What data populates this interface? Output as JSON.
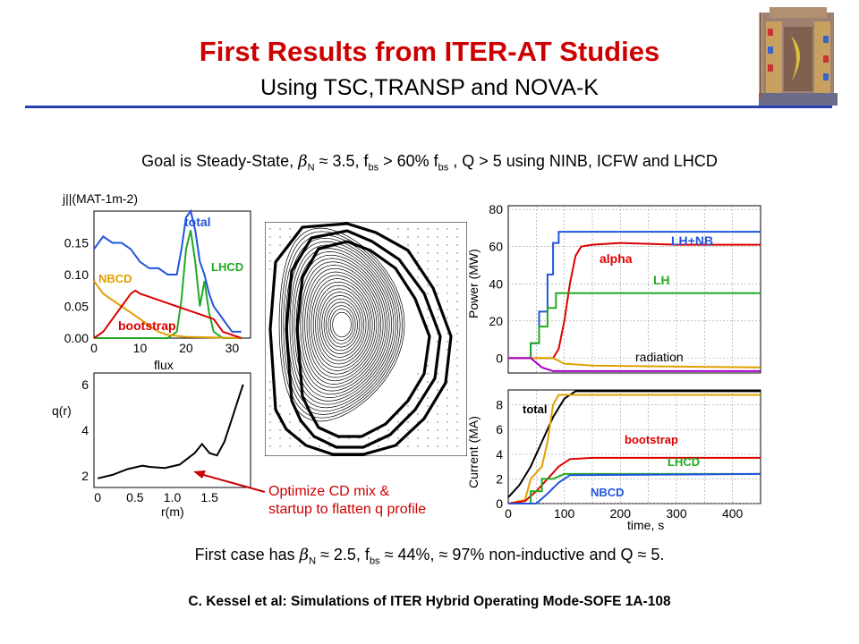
{
  "slide": {
    "title": "First Results from ITER-AT Studies",
    "subtitle": "Using TSC,TRANSP and NOVA-K",
    "goal": {
      "prefix": "Goal is Steady-State, ",
      "beta": "β",
      "beta_sub": "N",
      "mid1": " ≈ 3.5, f",
      "fbs_sub": "bs",
      "mid2": " > 60% f",
      "fbs_sub2": "bs",
      "suffix": " , Q > 5 using NINB, ICFW and LHCD"
    },
    "result": {
      "prefix": "First case has ",
      "beta": "β",
      "beta_sub": "N",
      "mid1": " ≈ 2.5, f",
      "fbs_sub": "bs",
      "suffix": " ≈ 44%, ≈ 97% non-inductive and  Q ≈ 5."
    },
    "note_line1": "Optimize CD mix &",
    "note_line2": "startup to flatten q profile",
    "footer": "C. Kessel et al:  Simulations of ITER Hybrid Operating Mode-SOFE 1A-108"
  },
  "colors": {
    "title": "#cc0000",
    "rule": "#2a3fb0",
    "total": "#2255dd",
    "lhcd": "#22aa22",
    "nbcd": "#e0a000",
    "bootstrap": "#dd0000",
    "radiation": "#aa00cc"
  },
  "chart_data": [
    {
      "type": "line",
      "ylabel": "j||(MAT-1m-2)",
      "xlabel": "flux",
      "xticks": [
        "0",
        "10",
        "20",
        "30"
      ],
      "yticks": [
        "0.00",
        "0.05",
        "0.10",
        "0.15"
      ],
      "xlim": [
        0,
        34
      ],
      "ylim": [
        0,
        0.2
      ],
      "series": [
        {
          "name": "total",
          "color": "#2255dd",
          "points": [
            [
              0,
              0.14
            ],
            [
              2,
              0.16
            ],
            [
              4,
              0.15
            ],
            [
              6,
              0.15
            ],
            [
              8,
              0.14
            ],
            [
              10,
              0.12
            ],
            [
              12,
              0.11
            ],
            [
              14,
              0.11
            ],
            [
              16,
              0.1
            ],
            [
              18,
              0.1
            ],
            [
              19,
              0.14
            ],
            [
              20,
              0.19
            ],
            [
              21,
              0.2
            ],
            [
              22,
              0.17
            ],
            [
              23,
              0.12
            ],
            [
              24,
              0.1
            ],
            [
              25,
              0.07
            ],
            [
              26,
              0.05
            ],
            [
              27,
              0.04
            ],
            [
              28,
              0.03
            ],
            [
              30,
              0.01
            ],
            [
              32,
              0.01
            ]
          ]
        },
        {
          "name": "LHCD",
          "color": "#22aa22",
          "points": [
            [
              0,
              0
            ],
            [
              16,
              0
            ],
            [
              18,
              0.01
            ],
            [
              19,
              0.06
            ],
            [
              20,
              0.14
            ],
            [
              21,
              0.17
            ],
            [
              22,
              0.12
            ],
            [
              23,
              0.05
            ],
            [
              24,
              0.09
            ],
            [
              25,
              0.04
            ],
            [
              26,
              0.01
            ],
            [
              28,
              0.0
            ],
            [
              32,
              0
            ]
          ]
        },
        {
          "name": "NBCD",
          "color": "#e0a000",
          "points": [
            [
              0,
              0.09
            ],
            [
              2,
              0.07
            ],
            [
              4,
              0.06
            ],
            [
              6,
              0.05
            ],
            [
              8,
              0.04
            ],
            [
              10,
              0.03
            ],
            [
              12,
              0.02
            ],
            [
              14,
              0.01
            ],
            [
              16,
              0.005
            ],
            [
              20,
              0.002
            ],
            [
              32,
              0
            ]
          ]
        },
        {
          "name": "bootstrap",
          "color": "#dd0000",
          "points": [
            [
              0,
              0.0
            ],
            [
              2,
              0.01
            ],
            [
              4,
              0.03
            ],
            [
              6,
              0.05
            ],
            [
              8,
              0.07
            ],
            [
              9,
              0.075
            ],
            [
              10,
              0.07
            ],
            [
              12,
              0.065
            ],
            [
              14,
              0.06
            ],
            [
              16,
              0.055
            ],
            [
              18,
              0.05
            ],
            [
              20,
              0.045
            ],
            [
              22,
              0.04
            ],
            [
              24,
              0.035
            ],
            [
              26,
              0.03
            ],
            [
              28,
              0.01
            ],
            [
              30,
              0.005
            ],
            [
              32,
              0
            ]
          ]
        }
      ],
      "labels": [
        "total",
        "LHCD",
        "NBCD",
        "bootstrap"
      ]
    },
    {
      "type": "line",
      "ylabel": "q(r)",
      "xlabel": "r(m)",
      "xticks": [
        "0",
        "0.5",
        "1.0",
        "1.5"
      ],
      "yticks": [
        "2",
        "4",
        "6"
      ],
      "xlim": [
        -0.05,
        2.05
      ],
      "ylim": [
        1.5,
        6.5
      ],
      "series": [
        {
          "name": "q",
          "color": "#000000",
          "points": [
            [
              0,
              1.9
            ],
            [
              0.2,
              2.05
            ],
            [
              0.4,
              2.3
            ],
            [
              0.6,
              2.45
            ],
            [
              0.7,
              2.4
            ],
            [
              0.9,
              2.35
            ],
            [
              1.1,
              2.5
            ],
            [
              1.3,
              3.0
            ],
            [
              1.4,
              3.4
            ],
            [
              1.5,
              3.0
            ],
            [
              1.6,
              2.9
            ],
            [
              1.7,
              3.5
            ],
            [
              1.8,
              4.5
            ],
            [
              1.9,
              5.5
            ],
            [
              1.95,
              6.0
            ]
          ]
        }
      ]
    },
    {
      "type": "line",
      "ylabel": "Power (MW)",
      "yticks": [
        "0",
        "20",
        "40",
        "60",
        "80"
      ],
      "xlim": [
        0,
        450
      ],
      "ylim": [
        -8,
        82
      ],
      "series": [
        {
          "name": "LH+NB",
          "color": "#2255dd",
          "points": [
            [
              0,
              0
            ],
            [
              40,
              0
            ],
            [
              40,
              8
            ],
            [
              55,
              8
            ],
            [
              55,
              25
            ],
            [
              70,
              25
            ],
            [
              70,
              45
            ],
            [
              80,
              45
            ],
            [
              80,
              62
            ],
            [
              90,
              62
            ],
            [
              90,
              68
            ],
            [
              450,
              68
            ]
          ]
        },
        {
          "name": "alpha",
          "color": "#dd0000",
          "points": [
            [
              0,
              0
            ],
            [
              80,
              0
            ],
            [
              90,
              5
            ],
            [
              100,
              20
            ],
            [
              110,
              40
            ],
            [
              120,
              55
            ],
            [
              130,
              60
            ],
            [
              150,
              61
            ],
            [
              200,
              62
            ],
            [
              300,
              61
            ],
            [
              450,
              61
            ]
          ]
        },
        {
          "name": "LH",
          "color": "#22aa22",
          "points": [
            [
              0,
              0
            ],
            [
              40,
              0
            ],
            [
              40,
              8
            ],
            [
              55,
              8
            ],
            [
              55,
              17
            ],
            [
              70,
              17
            ],
            [
              70,
              27
            ],
            [
              85,
              27
            ],
            [
              85,
              35
            ],
            [
              450,
              35
            ]
          ]
        },
        {
          "name": "radiation",
          "color": "#e0a000",
          "points": [
            [
              0,
              0
            ],
            [
              80,
              0
            ],
            [
              100,
              -3
            ],
            [
              150,
              -4
            ],
            [
              450,
              -5
            ]
          ]
        },
        {
          "name": "",
          "color": "#aa00cc",
          "points": [
            [
              0,
              0
            ],
            [
              40,
              0
            ],
            [
              60,
              -5
            ],
            [
              80,
              -7
            ],
            [
              450,
              -7
            ]
          ]
        }
      ],
      "labels": [
        "LH+NB",
        "alpha",
        "LH",
        "radiation"
      ]
    },
    {
      "type": "line",
      "xlabel": "time, s",
      "ylabel": "Current (MA)",
      "xticks": [
        "0",
        "100",
        "200",
        "300",
        "400"
      ],
      "yticks": [
        "0",
        "2",
        "4",
        "6",
        "8"
      ],
      "xlim": [
        0,
        450
      ],
      "ylim": [
        0,
        9.2
      ],
      "series": [
        {
          "name": "total",
          "color": "#000000",
          "points": [
            [
              0,
              0.5
            ],
            [
              20,
              1.5
            ],
            [
              40,
              3
            ],
            [
              60,
              5
            ],
            [
              80,
              7
            ],
            [
              100,
              8.5
            ],
            [
              120,
              9.1
            ],
            [
              450,
              9.1
            ]
          ]
        },
        {
          "name": "",
          "color": "#e0a000",
          "points": [
            [
              0,
              0
            ],
            [
              30,
              0.3
            ],
            [
              40,
              2
            ],
            [
              60,
              3
            ],
            [
              70,
              5
            ],
            [
              80,
              8
            ],
            [
              90,
              8.8
            ],
            [
              450,
              8.8
            ]
          ]
        },
        {
          "name": "bootstrap",
          "color": "#dd0000",
          "points": [
            [
              0,
              0
            ],
            [
              30,
              0.2
            ],
            [
              50,
              1
            ],
            [
              70,
              2
            ],
            [
              90,
              3
            ],
            [
              110,
              3.6
            ],
            [
              150,
              3.7
            ],
            [
              450,
              3.7
            ]
          ]
        },
        {
          "name": "LHCD",
          "color": "#22aa22",
          "points": [
            [
              0,
              0
            ],
            [
              40,
              0
            ],
            [
              40,
              1
            ],
            [
              60,
              1
            ],
            [
              60,
              2
            ],
            [
              80,
              2
            ],
            [
              100,
              2.4
            ],
            [
              450,
              2.4
            ]
          ]
        },
        {
          "name": "NBCD",
          "color": "#2255dd",
          "points": [
            [
              0,
              0
            ],
            [
              50,
              0
            ],
            [
              70,
              0.8
            ],
            [
              90,
              1.7
            ],
            [
              110,
              2.3
            ],
            [
              450,
              2.4
            ]
          ]
        }
      ],
      "labels": [
        "total",
        "bootstrap",
        "LHCD",
        "NBCD"
      ]
    }
  ]
}
